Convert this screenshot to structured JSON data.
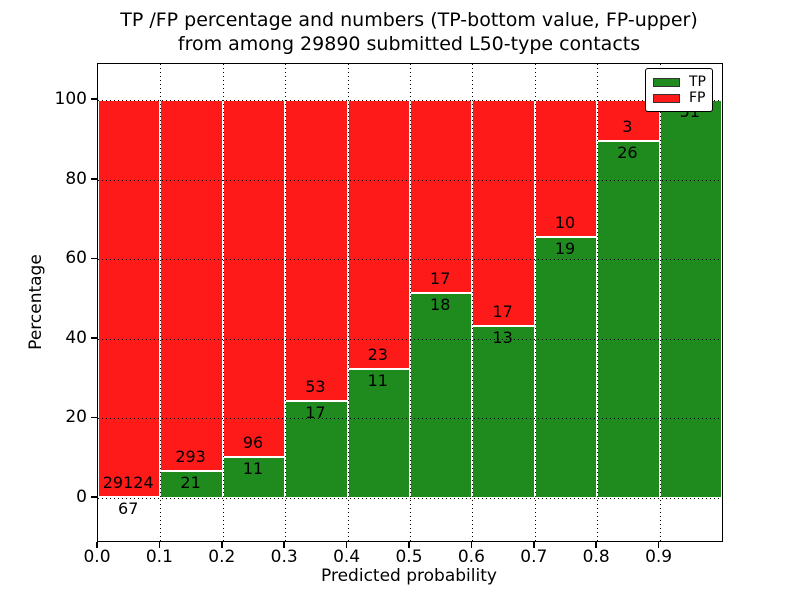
{
  "chart_data": {
    "type": "bar",
    "stacked": true,
    "title_line1": "TP /FP percentage and numbers (TP-bottom value, FP-upper)",
    "title_line2": "from among 29890 submitted L50-type contacts",
    "xlabel": "Predicted probability",
    "ylabel": "Percentage",
    "xlim": [
      0.0,
      1.0
    ],
    "ylim": [
      -10.8,
      109.1
    ],
    "x_tick_values": [
      0.0,
      0.1,
      0.2,
      0.3,
      0.4,
      0.5,
      0.6,
      0.7,
      0.8,
      0.9
    ],
    "x_tick_labels": [
      "0.0",
      "0.1",
      "0.2",
      "0.3",
      "0.4",
      "0.5",
      "0.6",
      "0.7",
      "0.8",
      "0.9"
    ],
    "y_tick_values": [
      0,
      20,
      40,
      60,
      80,
      100
    ],
    "y_tick_labels": [
      "0",
      "20",
      "40",
      "60",
      "80",
      "100"
    ],
    "grid": "dotted",
    "colors": {
      "tp": "#1f8b1f",
      "fp": "#ff1a1a"
    },
    "legend": {
      "position": "upper right",
      "entries": [
        {
          "label": "TP",
          "color": "#1f8b1f"
        },
        {
          "label": "FP",
          "color": "#ff1a1a"
        }
      ]
    },
    "bins": [
      {
        "x0": 0.0,
        "x1": 0.1,
        "tp_count": 67,
        "fp_count": 29124,
        "tp_pct": 0.23,
        "tp_label": "67",
        "fp_label": "29124"
      },
      {
        "x0": 0.1,
        "x1": 0.2,
        "tp_count": 21,
        "fp_count": 293,
        "tp_pct": 6.69,
        "tp_label": "21",
        "fp_label": "293"
      },
      {
        "x0": 0.2,
        "x1": 0.3,
        "tp_count": 11,
        "fp_count": 96,
        "tp_pct": 10.28,
        "tp_label": "11",
        "fp_label": "96"
      },
      {
        "x0": 0.3,
        "x1": 0.4,
        "tp_count": 17,
        "fp_count": 53,
        "tp_pct": 24.29,
        "tp_label": "17",
        "fp_label": "53"
      },
      {
        "x0": 0.4,
        "x1": 0.5,
        "tp_count": 11,
        "fp_count": 23,
        "tp_pct": 32.35,
        "tp_label": "11",
        "fp_label": "23"
      },
      {
        "x0": 0.5,
        "x1": 0.6,
        "tp_count": 18,
        "fp_count": 17,
        "tp_pct": 51.43,
        "tp_label": "18",
        "fp_label": "17"
      },
      {
        "x0": 0.6,
        "x1": 0.7,
        "tp_count": 13,
        "fp_count": 17,
        "tp_pct": 43.33,
        "tp_label": "13",
        "fp_label": "17"
      },
      {
        "x0": 0.7,
        "x1": 0.8,
        "tp_count": 19,
        "fp_count": 10,
        "tp_pct": 65.52,
        "tp_label": "19",
        "fp_label": "10"
      },
      {
        "x0": 0.8,
        "x1": 0.9,
        "tp_count": 26,
        "fp_count": 3,
        "tp_pct": 89.66,
        "tp_label": "26",
        "fp_label": "3"
      },
      {
        "x0": 0.9,
        "x1": 1.0,
        "tp_count": 51,
        "fp_count": 0,
        "tp_pct": 100.0,
        "tp_label": "51",
        "fp_label": ""
      }
    ]
  }
}
